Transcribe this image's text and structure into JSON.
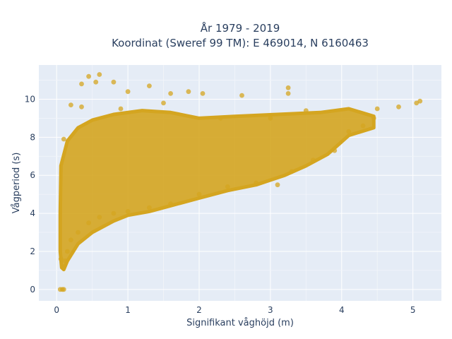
{
  "chart_data": {
    "type": "scatter",
    "title_line1": "År 1979 - 2019",
    "title_line2": "Koordinat (Sweref 99 TM): E 469014, N 6160463",
    "xlabel": "Signifikant våghöjd (m)",
    "ylabel": "Vågperiod (s)",
    "xlim": [
      -0.25,
      5.4
    ],
    "ylim": [
      -0.6,
      11.8
    ],
    "x_ticks": [
      0,
      1,
      2,
      3,
      4,
      5
    ],
    "y_ticks": [
      0,
      2,
      4,
      6,
      8,
      10
    ],
    "grid": true,
    "point_color": "#d4a520",
    "plot_background": "#e5ecf6",
    "points": [
      {
        "x": 0.05,
        "y": 0.0
      },
      {
        "x": 0.08,
        "y": 0.0
      },
      {
        "x": 0.1,
        "y": 0.0
      },
      {
        "x": 0.06,
        "y": 1.6
      },
      {
        "x": 0.1,
        "y": 1.2
      },
      {
        "x": 0.12,
        "y": 1.5
      },
      {
        "x": 0.15,
        "y": 2.0
      },
      {
        "x": 0.2,
        "y": 2.6
      },
      {
        "x": 0.3,
        "y": 3.0
      },
      {
        "x": 0.45,
        "y": 3.5
      },
      {
        "x": 0.6,
        "y": 3.8
      },
      {
        "x": 0.8,
        "y": 4.0
      },
      {
        "x": 1.0,
        "y": 4.1
      },
      {
        "x": 1.3,
        "y": 4.3
      },
      {
        "x": 1.6,
        "y": 4.5
      },
      {
        "x": 2.0,
        "y": 5.0
      },
      {
        "x": 2.4,
        "y": 5.4
      },
      {
        "x": 2.8,
        "y": 5.6
      },
      {
        "x": 3.1,
        "y": 5.5
      },
      {
        "x": 3.3,
        "y": 6.2
      },
      {
        "x": 3.6,
        "y": 6.8
      },
      {
        "x": 3.9,
        "y": 7.3
      },
      {
        "x": 4.1,
        "y": 8.3
      },
      {
        "x": 4.3,
        "y": 8.6
      },
      {
        "x": 4.45,
        "y": 9.0
      },
      {
        "x": 4.5,
        "y": 9.5
      },
      {
        "x": 4.8,
        "y": 9.6
      },
      {
        "x": 5.05,
        "y": 9.8
      },
      {
        "x": 5.1,
        "y": 9.9
      },
      {
        "x": 0.1,
        "y": 7.9
      },
      {
        "x": 0.2,
        "y": 9.7
      },
      {
        "x": 0.35,
        "y": 9.6
      },
      {
        "x": 0.35,
        "y": 10.8
      },
      {
        "x": 0.45,
        "y": 11.2
      },
      {
        "x": 0.55,
        "y": 10.9
      },
      {
        "x": 0.6,
        "y": 11.3
      },
      {
        "x": 0.8,
        "y": 10.9
      },
      {
        "x": 1.0,
        "y": 10.4
      },
      {
        "x": 1.3,
        "y": 10.7
      },
      {
        "x": 1.6,
        "y": 10.3
      },
      {
        "x": 1.85,
        "y": 10.4
      },
      {
        "x": 2.05,
        "y": 10.3
      },
      {
        "x": 2.6,
        "y": 10.2
      },
      {
        "x": 3.25,
        "y": 10.6
      },
      {
        "x": 3.25,
        "y": 10.3
      },
      {
        "x": 2.3,
        "y": 9.0
      },
      {
        "x": 3.0,
        "y": 9.0
      },
      {
        "x": 3.5,
        "y": 9.4
      },
      {
        "x": 1.5,
        "y": 9.8
      },
      {
        "x": 0.9,
        "y": 9.5
      }
    ]
  }
}
